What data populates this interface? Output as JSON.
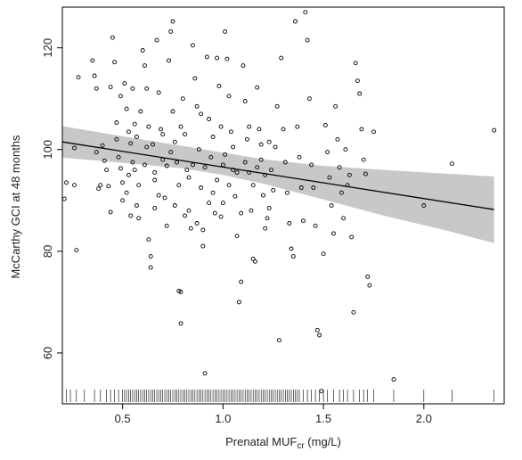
{
  "chart_data": {
    "type": "scatter",
    "title": "",
    "xlabel_main": "Prenatal MUF",
    "xlabel_sub": "cr",
    "xlabel_unit": " (mg/L)",
    "ylabel": "McCarthy GCI at 48 months",
    "xlim": [
      0.2,
      2.4
    ],
    "ylim": [
      50,
      128
    ],
    "x_ticks": [
      0.5,
      1.0,
      1.5,
      2.0
    ],
    "x_tick_labels": [
      "0.5",
      "1.0",
      "1.5",
      "2.0"
    ],
    "y_ticks": [
      60,
      80,
      100,
      120
    ],
    "y_tick_labels": [
      "60",
      "80",
      "100",
      "120"
    ],
    "grid": false,
    "legend": "none",
    "colors": {
      "points": "#000000",
      "fit_line": "#000000",
      "ci_band": "#c8c8c8",
      "rug": "#000000"
    },
    "fit_line": {
      "x": [
        0.2,
        2.35
      ],
      "y": [
        101.5,
        88.2
      ]
    },
    "ci_band": {
      "x": [
        0.2,
        0.5,
        0.8,
        1.0,
        1.2,
        1.5,
        1.8,
        2.1,
        2.35
      ],
      "lower": [
        98.4,
        97.4,
        96.3,
        95.0,
        93.3,
        90.2,
        87.0,
        84.2,
        81.6
      ],
      "upper": [
        104.6,
        102.6,
        100.7,
        99.4,
        98.1,
        96.8,
        96.0,
        95.3,
        94.7
      ]
    },
    "points": [
      {
        "x": 0.21,
        "y": 90.3
      },
      {
        "x": 0.22,
        "y": 93.5
      },
      {
        "x": 0.26,
        "y": 100.3
      },
      {
        "x": 0.26,
        "y": 93.0
      },
      {
        "x": 0.27,
        "y": 80.2
      },
      {
        "x": 0.28,
        "y": 114.2
      },
      {
        "x": 0.35,
        "y": 117.5
      },
      {
        "x": 0.36,
        "y": 114.5
      },
      {
        "x": 0.37,
        "y": 112.0
      },
      {
        "x": 0.37,
        "y": 99.5
      },
      {
        "x": 0.38,
        "y": 92.3
      },
      {
        "x": 0.39,
        "y": 93.0
      },
      {
        "x": 0.4,
        "y": 100.8
      },
      {
        "x": 0.41,
        "y": 97.8
      },
      {
        "x": 0.42,
        "y": 96.0
      },
      {
        "x": 0.43,
        "y": 92.8
      },
      {
        "x": 0.44,
        "y": 87.7
      },
      {
        "x": 0.44,
        "y": 112.3
      },
      {
        "x": 0.45,
        "y": 122.0
      },
      {
        "x": 0.46,
        "y": 117.2
      },
      {
        "x": 0.47,
        "y": 105.3
      },
      {
        "x": 0.48,
        "y": 98.5
      },
      {
        "x": 0.49,
        "y": 96.3
      },
      {
        "x": 0.5,
        "y": 93.5
      },
      {
        "x": 0.5,
        "y": 90.0
      },
      {
        "x": 0.51,
        "y": 113.0
      },
      {
        "x": 0.52,
        "y": 108.0
      },
      {
        "x": 0.53,
        "y": 103.5
      },
      {
        "x": 0.54,
        "y": 101.2
      },
      {
        "x": 0.55,
        "y": 112.0
      },
      {
        "x": 0.56,
        "y": 96.0
      },
      {
        "x": 0.57,
        "y": 89.0
      },
      {
        "x": 0.58,
        "y": 93.0
      },
      {
        "x": 0.58,
        "y": 86.5
      },
      {
        "x": 0.6,
        "y": 119.5
      },
      {
        "x": 0.61,
        "y": 116.5
      },
      {
        "x": 0.62,
        "y": 112.0
      },
      {
        "x": 0.63,
        "y": 104.5
      },
      {
        "x": 0.63,
        "y": 82.3
      },
      {
        "x": 0.64,
        "y": 76.8
      },
      {
        "x": 0.64,
        "y": 79.0
      },
      {
        "x": 0.65,
        "y": 101.0
      },
      {
        "x": 0.66,
        "y": 95.5
      },
      {
        "x": 0.66,
        "y": 88.5
      },
      {
        "x": 0.67,
        "y": 121.5
      },
      {
        "x": 0.68,
        "y": 111.2
      },
      {
        "x": 0.69,
        "y": 104.0
      },
      {
        "x": 0.7,
        "y": 98.0
      },
      {
        "x": 0.71,
        "y": 90.5
      },
      {
        "x": 0.72,
        "y": 85.0
      },
      {
        "x": 0.73,
        "y": 117.5
      },
      {
        "x": 0.74,
        "y": 123.2
      },
      {
        "x": 0.75,
        "y": 125.2
      },
      {
        "x": 0.75,
        "y": 107.5
      },
      {
        "x": 0.76,
        "y": 101.5
      },
      {
        "x": 0.77,
        "y": 97.5
      },
      {
        "x": 0.78,
        "y": 93.0
      },
      {
        "x": 0.78,
        "y": 72.2
      },
      {
        "x": 0.79,
        "y": 72.0
      },
      {
        "x": 0.79,
        "y": 65.8
      },
      {
        "x": 0.8,
        "y": 110.0
      },
      {
        "x": 0.81,
        "y": 103.0
      },
      {
        "x": 0.82,
        "y": 96.0
      },
      {
        "x": 0.83,
        "y": 88.0
      },
      {
        "x": 0.84,
        "y": 84.5
      },
      {
        "x": 0.85,
        "y": 120.5
      },
      {
        "x": 0.86,
        "y": 114.0
      },
      {
        "x": 0.87,
        "y": 108.5
      },
      {
        "x": 0.88,
        "y": 100.0
      },
      {
        "x": 0.89,
        "y": 92.5
      },
      {
        "x": 0.9,
        "y": 84.2
      },
      {
        "x": 0.9,
        "y": 81.0
      },
      {
        "x": 0.91,
        "y": 56.0
      },
      {
        "x": 0.92,
        "y": 118.2
      },
      {
        "x": 0.93,
        "y": 106.0
      },
      {
        "x": 0.94,
        "y": 98.5
      },
      {
        "x": 0.95,
        "y": 91.5
      },
      {
        "x": 0.96,
        "y": 87.5
      },
      {
        "x": 0.97,
        "y": 118.0
      },
      {
        "x": 0.98,
        "y": 112.5
      },
      {
        "x": 0.99,
        "y": 104.5
      },
      {
        "x": 1.0,
        "y": 97.0
      },
      {
        "x": 1.0,
        "y": 89.5
      },
      {
        "x": 1.01,
        "y": 123.2
      },
      {
        "x": 1.02,
        "y": 117.8
      },
      {
        "x": 1.03,
        "y": 110.5
      },
      {
        "x": 1.04,
        "y": 103.5
      },
      {
        "x": 1.05,
        "y": 96.0
      },
      {
        "x": 1.06,
        "y": 90.8
      },
      {
        "x": 1.07,
        "y": 83.0
      },
      {
        "x": 1.08,
        "y": 70.0
      },
      {
        "x": 1.09,
        "y": 74.0
      },
      {
        "x": 1.1,
        "y": 116.5
      },
      {
        "x": 1.11,
        "y": 109.5
      },
      {
        "x": 1.12,
        "y": 102.0
      },
      {
        "x": 1.13,
        "y": 95.5
      },
      {
        "x": 1.14,
        "y": 88.0
      },
      {
        "x": 1.15,
        "y": 78.5
      },
      {
        "x": 1.16,
        "y": 78.0
      },
      {
        "x": 1.17,
        "y": 112.2
      },
      {
        "x": 1.18,
        "y": 104.0
      },
      {
        "x": 1.19,
        "y": 98.0
      },
      {
        "x": 1.2,
        "y": 91.0
      },
      {
        "x": 1.21,
        "y": 84.5
      },
      {
        "x": 1.22,
        "y": 86.5
      },
      {
        "x": 1.23,
        "y": 101.5
      },
      {
        "x": 1.24,
        "y": 96.0
      },
      {
        "x": 1.25,
        "y": 92.0
      },
      {
        "x": 1.26,
        "y": 100.5
      },
      {
        "x": 1.27,
        "y": 108.5
      },
      {
        "x": 1.28,
        "y": 62.5
      },
      {
        "x": 1.29,
        "y": 118.0
      },
      {
        "x": 1.3,
        "y": 104.0
      },
      {
        "x": 1.31,
        "y": 97.5
      },
      {
        "x": 1.32,
        "y": 91.5
      },
      {
        "x": 1.33,
        "y": 85.5
      },
      {
        "x": 1.34,
        "y": 80.5
      },
      {
        "x": 1.35,
        "y": 79.0
      },
      {
        "x": 1.36,
        "y": 125.2
      },
      {
        "x": 1.37,
        "y": 104.5
      },
      {
        "x": 1.38,
        "y": 98.5
      },
      {
        "x": 1.39,
        "y": 92.5
      },
      {
        "x": 1.4,
        "y": 86.0
      },
      {
        "x": 1.41,
        "y": 127.0
      },
      {
        "x": 1.42,
        "y": 121.5
      },
      {
        "x": 1.43,
        "y": 110.0
      },
      {
        "x": 1.44,
        "y": 97.0
      },
      {
        "x": 1.45,
        "y": 92.5
      },
      {
        "x": 1.46,
        "y": 85.0
      },
      {
        "x": 1.47,
        "y": 64.5
      },
      {
        "x": 1.48,
        "y": 63.5
      },
      {
        "x": 1.49,
        "y": 52.5
      },
      {
        "x": 1.5,
        "y": 79.5
      },
      {
        "x": 1.51,
        "y": 104.8
      },
      {
        "x": 1.52,
        "y": 99.5
      },
      {
        "x": 1.53,
        "y": 94.5
      },
      {
        "x": 1.54,
        "y": 89.0
      },
      {
        "x": 1.55,
        "y": 83.5
      },
      {
        "x": 1.56,
        "y": 108.5
      },
      {
        "x": 1.57,
        "y": 102.0
      },
      {
        "x": 1.58,
        "y": 96.5
      },
      {
        "x": 1.59,
        "y": 91.5
      },
      {
        "x": 1.6,
        "y": 86.5
      },
      {
        "x": 1.61,
        "y": 100.0
      },
      {
        "x": 1.62,
        "y": 93.0
      },
      {
        "x": 1.63,
        "y": 95.0
      },
      {
        "x": 1.64,
        "y": 82.8
      },
      {
        "x": 1.65,
        "y": 68.0
      },
      {
        "x": 1.66,
        "y": 117.0
      },
      {
        "x": 1.67,
        "y": 113.5
      },
      {
        "x": 1.68,
        "y": 111.0
      },
      {
        "x": 1.69,
        "y": 104.0
      },
      {
        "x": 1.7,
        "y": 98.0
      },
      {
        "x": 1.71,
        "y": 95.2
      },
      {
        "x": 1.72,
        "y": 75.0
      },
      {
        "x": 1.73,
        "y": 73.3
      },
      {
        "x": 1.75,
        "y": 103.5
      },
      {
        "x": 1.85,
        "y": 54.8
      },
      {
        "x": 2.0,
        "y": 89.0
      },
      {
        "x": 2.14,
        "y": 97.2
      },
      {
        "x": 2.35,
        "y": 103.8
      },
      {
        "x": 0.62,
        "y": 100.5
      },
      {
        "x": 0.66,
        "y": 94.0
      },
      {
        "x": 0.68,
        "y": 91.0
      },
      {
        "x": 0.7,
        "y": 103.0
      },
      {
        "x": 0.72,
        "y": 96.8
      },
      {
        "x": 0.74,
        "y": 99.5
      },
      {
        "x": 0.76,
        "y": 89.0
      },
      {
        "x": 0.79,
        "y": 104.5
      },
      {
        "x": 0.81,
        "y": 87.0
      },
      {
        "x": 0.83,
        "y": 94.5
      },
      {
        "x": 0.85,
        "y": 97.0
      },
      {
        "x": 0.87,
        "y": 85.5
      },
      {
        "x": 0.89,
        "y": 107.0
      },
      {
        "x": 0.91,
        "y": 96.5
      },
      {
        "x": 0.93,
        "y": 89.5
      },
      {
        "x": 0.95,
        "y": 102.5
      },
      {
        "x": 0.97,
        "y": 94.0
      },
      {
        "x": 0.99,
        "y": 86.8
      },
      {
        "x": 1.01,
        "y": 99.0
      },
      {
        "x": 1.03,
        "y": 93.0
      },
      {
        "x": 1.05,
        "y": 100.5
      },
      {
        "x": 1.07,
        "y": 95.5
      },
      {
        "x": 1.09,
        "y": 87.5
      },
      {
        "x": 1.11,
        "y": 97.5
      },
      {
        "x": 1.13,
        "y": 104.5
      },
      {
        "x": 1.15,
        "y": 93.0
      },
      {
        "x": 1.17,
        "y": 96.5
      },
      {
        "x": 1.19,
        "y": 101.0
      },
      {
        "x": 1.21,
        "y": 95.0
      },
      {
        "x": 1.23,
        "y": 88.5
      },
      {
        "x": 0.53,
        "y": 95.0
      },
      {
        "x": 0.55,
        "y": 97.5
      },
      {
        "x": 0.57,
        "y": 102.5
      },
      {
        "x": 0.59,
        "y": 107.5
      },
      {
        "x": 0.61,
        "y": 97.0
      },
      {
        "x": 0.47,
        "y": 102.0
      },
      {
        "x": 0.49,
        "y": 110.5
      },
      {
        "x": 0.52,
        "y": 91.5
      },
      {
        "x": 0.54,
        "y": 87.0
      },
      {
        "x": 0.56,
        "y": 105.0
      }
    ],
    "rug_x": [
      0.22,
      0.24,
      0.27,
      0.31,
      0.36,
      0.39,
      0.42,
      0.44,
      0.46,
      0.48,
      0.5,
      0.51,
      0.52,
      0.53,
      0.54,
      0.55,
      0.56,
      0.57,
      0.58,
      0.59,
      0.6,
      0.61,
      0.62,
      0.63,
      0.64,
      0.65,
      0.66,
      0.67,
      0.68,
      0.69,
      0.7,
      0.71,
      0.72,
      0.73,
      0.74,
      0.75,
      0.76,
      0.77,
      0.78,
      0.79,
      0.8,
      0.81,
      0.82,
      0.83,
      0.84,
      0.85,
      0.86,
      0.87,
      0.88,
      0.89,
      0.9,
      0.91,
      0.92,
      0.93,
      0.94,
      0.95,
      0.96,
      0.97,
      0.98,
      0.99,
      1.0,
      1.01,
      1.02,
      1.03,
      1.04,
      1.05,
      1.06,
      1.07,
      1.08,
      1.09,
      1.1,
      1.11,
      1.12,
      1.13,
      1.14,
      1.15,
      1.16,
      1.17,
      1.18,
      1.19,
      1.2,
      1.21,
      1.22,
      1.23,
      1.24,
      1.25,
      1.26,
      1.27,
      1.28,
      1.29,
      1.3,
      1.31,
      1.32,
      1.33,
      1.34,
      1.35,
      1.36,
      1.37,
      1.38,
      1.4,
      1.42,
      1.44,
      1.46,
      1.48,
      1.5,
      1.52,
      1.55,
      1.58,
      1.6,
      1.62,
      1.65,
      1.68,
      1.7,
      1.72,
      1.75,
      1.85,
      2.0,
      2.14,
      2.35
    ]
  }
}
